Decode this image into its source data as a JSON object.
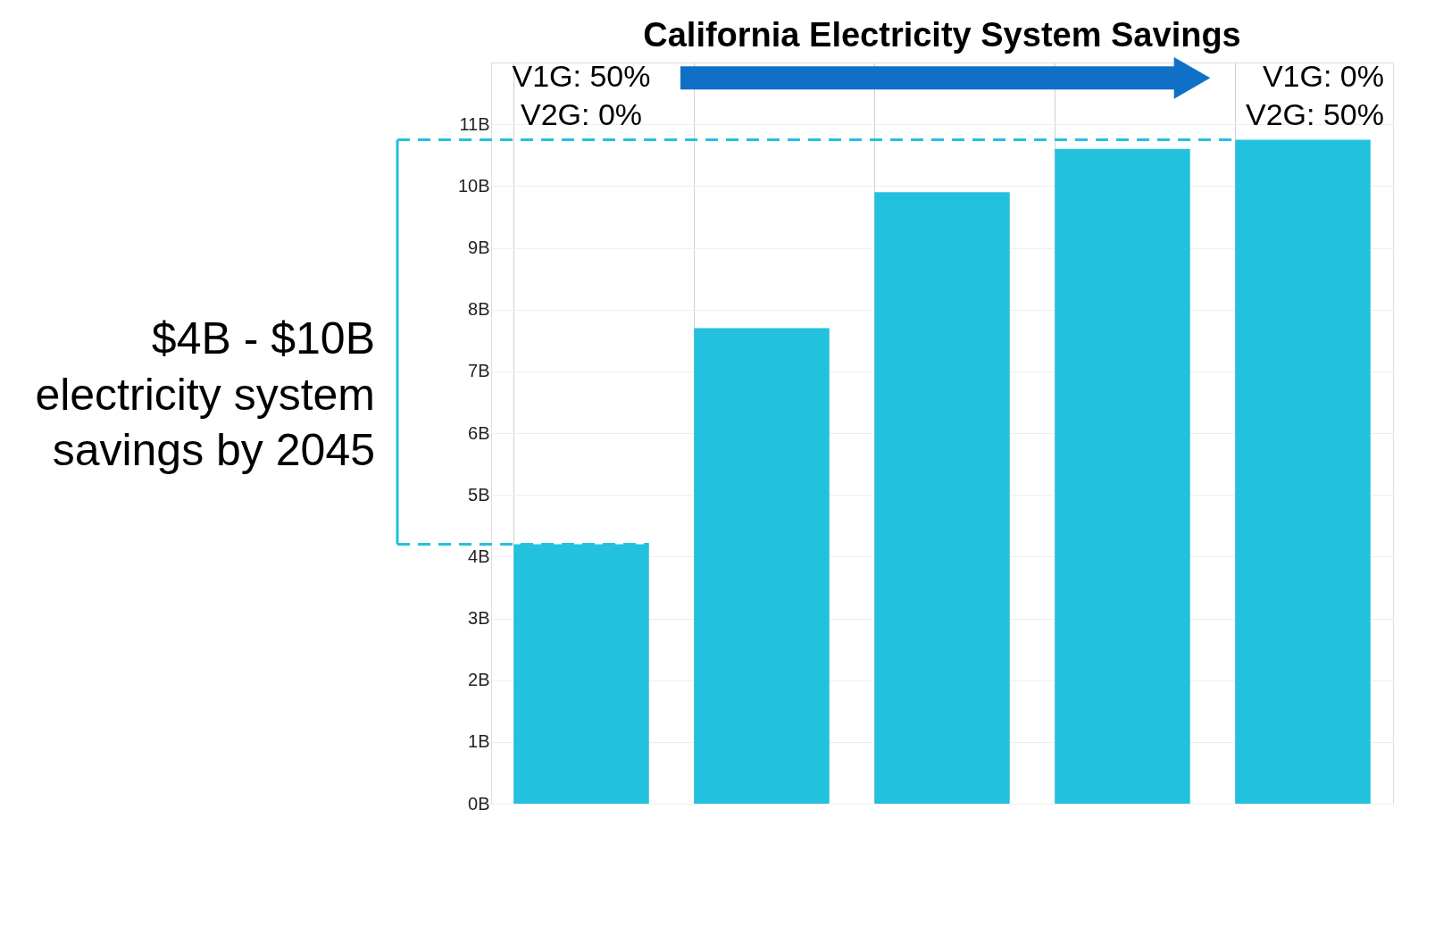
{
  "chart_data": {
    "type": "bar",
    "title": "California Electricity System Savings",
    "categories": [
      null,
      null,
      null,
      null,
      null
    ],
    "values": [
      4.2,
      7.7,
      9.9,
      10.6,
      10.75
    ],
    "color": "#22c1de",
    "ylim": [
      0,
      12
    ],
    "yticks": [
      {
        "value": 0,
        "label": "0B"
      },
      {
        "value": 1,
        "label": "1B"
      },
      {
        "value": 2,
        "label": "2B"
      },
      {
        "value": 3,
        "label": "3B"
      },
      {
        "value": 4,
        "label": "4B"
      },
      {
        "value": 5,
        "label": "5B"
      },
      {
        "value": 6,
        "label": "6B"
      },
      {
        "value": 7,
        "label": "7B"
      },
      {
        "value": 8,
        "label": "8B"
      },
      {
        "value": 9,
        "label": "9B"
      },
      {
        "value": 10,
        "label": "10B"
      },
      {
        "value": 11,
        "label": "11B"
      }
    ],
    "ref_lines": [
      {
        "axis": "y",
        "value": 10.75,
        "color": "#22c1de",
        "line_style": "dashed"
      },
      {
        "axis": "y",
        "value": 4.2,
        "color": "#22c1de",
        "line_style": "dashed"
      }
    ],
    "annotations": [
      "V1G: 50%\nV2G: 0%",
      "V1G: 0%\nV2G: 50%",
      "$4B - $10B\nelectricity system\nsavings by 2045"
    ],
    "grid": true,
    "tick_labels": "y"
  }
}
